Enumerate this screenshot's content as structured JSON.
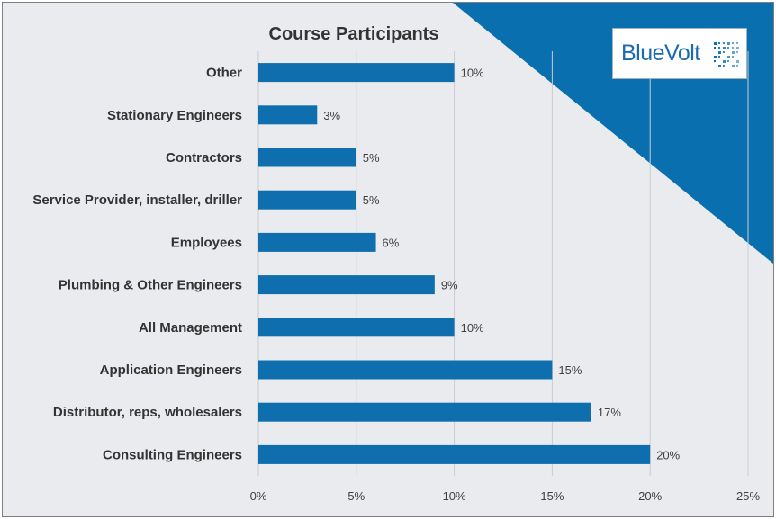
{
  "chart_data": {
    "type": "bar",
    "orientation": "horizontal",
    "title": "Course Participants",
    "categories": [
      "Other",
      "Stationary Engineers",
      "Contractors",
      "Service Provider, installer, driller",
      "Employees",
      "Plumbing & Other Engineers",
      "All Management",
      "Application Engineers",
      "Distributor, reps, wholesalers",
      "Consulting Engineers"
    ],
    "values": [
      10,
      3,
      5,
      5,
      6,
      9,
      10,
      15,
      17,
      20
    ],
    "value_labels": [
      "10%",
      "3%",
      "5%",
      "5%",
      "6%",
      "9%",
      "10%",
      "15%",
      "17%",
      "20%"
    ],
    "xlim": [
      0,
      25
    ],
    "xticks": [
      0,
      5,
      10,
      15,
      20,
      25
    ],
    "xtick_labels": [
      "0%",
      "5%",
      "10%",
      "15%",
      "20%",
      "25%"
    ],
    "xlabel": "",
    "ylabel": "",
    "grid": "vertical",
    "legend": "none",
    "bar_color": "#0f6fae"
  },
  "logo": {
    "text": "BlueVolt",
    "color": "#1b6bb0",
    "accent_color": "#0a6fae"
  }
}
